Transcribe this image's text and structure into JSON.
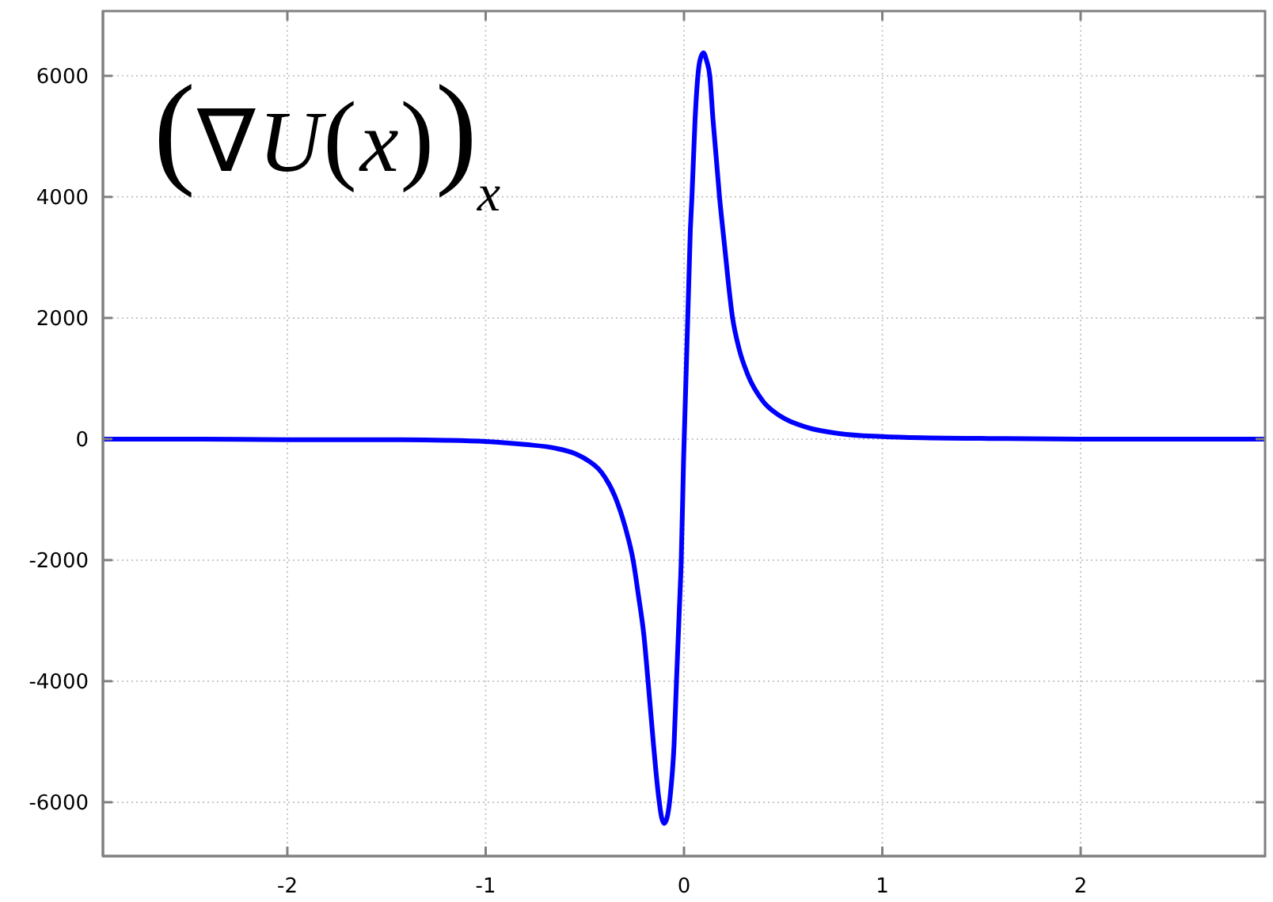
{
  "chart_data": {
    "type": "line",
    "annotations": [
      "(∇U(x))$_{x}$"
    ],
    "x": [
      -2.93,
      -2.5,
      -2.0,
      -1.5,
      -1.2,
      -1.0,
      -0.8,
      -0.65,
      -0.55,
      -0.496,
      -0.416,
      -0.349,
      -0.296,
      -0.256,
      -0.229,
      -0.202,
      -0.181,
      -0.154,
      -0.128,
      -0.113,
      -0.1,
      -0.085,
      -0.07,
      -0.05,
      -0.038,
      -0.024,
      -0.014,
      -0.002,
      0.032,
      0.04,
      0.056,
      0.07,
      0.08,
      0.098,
      0.114,
      0.13,
      0.146,
      0.179,
      0.203,
      0.245,
      0.277,
      0.322,
      0.397,
      0.49,
      0.623,
      0.783,
      1.0,
      1.2,
      1.5,
      2.0,
      2.5,
      2.93
    ],
    "values": [
      0,
      0,
      -10,
      -10,
      -20,
      -40,
      -90,
      -150,
      -240,
      -330,
      -550,
      -940,
      -1460,
      -2010,
      -2600,
      -3250,
      -4010,
      -5040,
      -5910,
      -6250,
      -6350,
      -6250,
      -5910,
      -5040,
      -4010,
      -2860,
      -2010,
      -330,
      3460,
      4000,
      5290,
      6000,
      6250,
      6380,
      6250,
      6000,
      5290,
      4000,
      3240,
      2000,
      1500,
      1060,
      630,
      370,
      190,
      90,
      40,
      20,
      10,
      0,
      0,
      0
    ],
    "color": "#0000ff",
    "xlim": [
      -2.93,
      2.93
    ],
    "xticks": [
      -2,
      -1,
      0,
      1,
      2
    ],
    "ylim": [
      -6890,
      7070
    ],
    "yticks": [
      -6000,
      -4000,
      -2000,
      0,
      2000,
      4000,
      6000
    ],
    "grid": true,
    "marker": "none"
  }
}
